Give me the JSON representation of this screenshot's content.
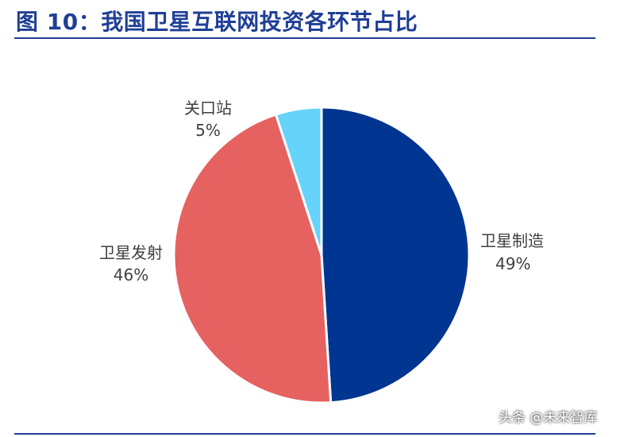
{
  "title": "图 10：我国卫星互联网投资各环节占比",
  "watermark": "头条 @未来智库",
  "chart_data": {
    "type": "pie",
    "slices": [
      {
        "label": "卫星制造",
        "value": 49,
        "value_label": "49%",
        "color": "#003591"
      },
      {
        "label": "卫星发射",
        "value": 46,
        "value_label": "46%",
        "color": "#e56261"
      },
      {
        "label": "关口站",
        "value": 5,
        "value_label": "5%",
        "color": "#66d3fa"
      }
    ]
  }
}
